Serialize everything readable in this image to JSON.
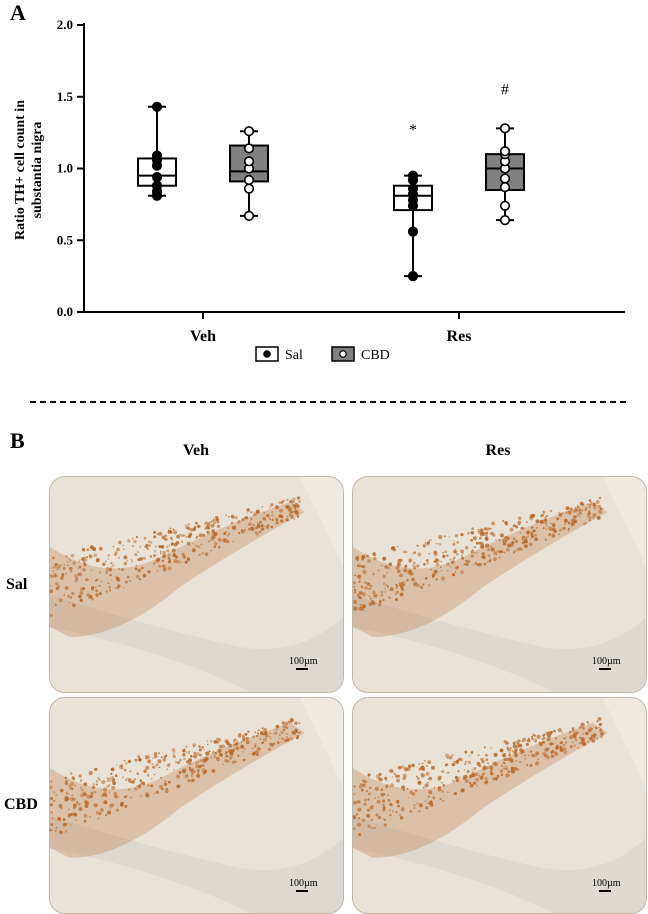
{
  "panel_a": {
    "letter": "A"
  },
  "panel_b": {
    "letter": "B"
  },
  "chart_data": {
    "type": "box",
    "ylabel": "Ratio TH+ cell count in substantia nigra",
    "ylim": [
      0,
      2
    ],
    "yticks": [
      "0.0",
      "0.5",
      "1.0",
      "1.5",
      "2.0"
    ],
    "categories": [
      "Veh",
      "Res"
    ],
    "legend_position": "bottom-center",
    "series": [
      {
        "name": "Sal",
        "fill": "#ffffff",
        "point_fill": "#000000",
        "boxes": [
          {
            "category": "Veh",
            "min": 0.81,
            "q1": 0.88,
            "median": 0.95,
            "q3": 1.07,
            "max": 1.43,
            "points": [
              0.81,
              0.84,
              0.88,
              0.94,
              1.02,
              1.06,
              1.09,
              1.43
            ]
          },
          {
            "category": "Res",
            "min": 0.25,
            "q1": 0.71,
            "median": 0.81,
            "q3": 0.88,
            "max": 0.95,
            "points": [
              0.25,
              0.56,
              0.74,
              0.78,
              0.82,
              0.86,
              0.92,
              0.95
            ]
          }
        ]
      },
      {
        "name": "CBD",
        "fill": "#808080",
        "point_fill": "#ffffff",
        "boxes": [
          {
            "category": "Veh",
            "min": 0.67,
            "q1": 0.91,
            "median": 0.98,
            "q3": 1.16,
            "max": 1.26,
            "points": [
              0.67,
              0.86,
              0.92,
              1.0,
              1.05,
              1.14,
              1.26
            ]
          },
          {
            "category": "Res",
            "min": 0.64,
            "q1": 0.85,
            "median": 1.0,
            "q3": 1.1,
            "max": 1.28,
            "points": [
              0.64,
              0.74,
              0.87,
              0.93,
              1.0,
              1.05,
              1.1,
              1.12,
              1.28
            ]
          }
        ]
      }
    ],
    "annotations": [
      {
        "text": "*",
        "category": "Res",
        "series": "Sal",
        "y": 1.27
      },
      {
        "text": "#",
        "category": "Res",
        "series": "CBD",
        "y": 1.55
      }
    ]
  },
  "micrographs": {
    "columns": [
      "Veh",
      "Res"
    ],
    "rows": [
      "Sal",
      "CBD"
    ],
    "scale_label": "100µm",
    "stain_color": "#b8692a"
  }
}
